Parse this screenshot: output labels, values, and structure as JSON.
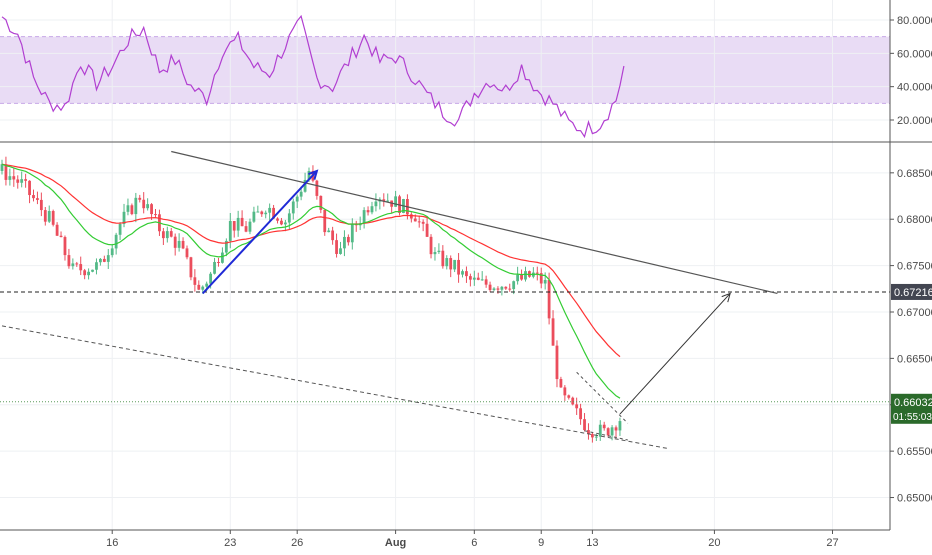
{
  "chart_data": {
    "type": "candlestick",
    "colors": {
      "bull": "#53b987",
      "bear": "#eb4d5c",
      "ema_fast": "#33cc33",
      "ema_slow": "#ff3333",
      "rsi_line": "#b13fd1",
      "rsi_band": "#e9dcf5",
      "trendline": "#555555",
      "impulse_arrow": "#1f2ad6",
      "projection_arrow": "#333333",
      "grid": "#eef0f3",
      "price_tag_bg": "#434651",
      "last_price_tag_bg": "#2b6a2b"
    },
    "x_ticks": [
      {
        "label": "16",
        "bar": 28
      },
      {
        "label": "23",
        "bar": 58
      },
      {
        "label": "26",
        "bar": 75
      },
      {
        "label": "Aug",
        "bar": 100
      },
      {
        "label": "6",
        "bar": 120
      },
      {
        "label": "9",
        "bar": 137
      },
      {
        "label": "13",
        "bar": 150
      },
      {
        "label": "20",
        "bar": 181
      },
      {
        "label": "27",
        "bar": 211
      }
    ],
    "price_axis": {
      "min": 0.6465,
      "max": 0.688,
      "tick_labels": [
        "0.68500",
        "0.68000",
        "0.67500",
        "0.67000",
        "0.66500",
        "0.66000",
        "0.65500",
        "0.65000"
      ],
      "tick_values": [
        0.685,
        0.68,
        0.675,
        0.67,
        0.665,
        0.66,
        0.655,
        0.65
      ]
    },
    "rsi_axis": {
      "min": 8,
      "max": 92,
      "tick_labels": [
        "80.0000",
        "60.0000",
        "40.0000",
        "20.0000"
      ],
      "tick_values": [
        80,
        60,
        40,
        20
      ],
      "band_upper": 70,
      "band_lower": 30
    },
    "level_line": {
      "value": 0.67216,
      "label": "0.67216"
    },
    "last_price": {
      "value": 0.66032,
      "label": "0.66032",
      "countdown": "01:55:03"
    },
    "price_path": [
      [
        0,
        0.6852
      ],
      [
        5,
        0.6838
      ],
      [
        12,
        0.68
      ],
      [
        18,
        0.6745
      ],
      [
        25,
        0.675
      ],
      [
        30,
        0.6795
      ],
      [
        35,
        0.6825
      ],
      [
        40,
        0.679
      ],
      [
        45,
        0.6772
      ],
      [
        50,
        0.6722
      ],
      [
        53,
        0.674
      ],
      [
        58,
        0.6795
      ],
      [
        62,
        0.679
      ],
      [
        67,
        0.6815
      ],
      [
        72,
        0.6798
      ],
      [
        78,
        0.6852
      ],
      [
        82,
        0.679
      ],
      [
        86,
        0.6765
      ],
      [
        90,
        0.6795
      ],
      [
        95,
        0.6828
      ],
      [
        100,
        0.6818
      ],
      [
        105,
        0.6805
      ],
      [
        110,
        0.676
      ],
      [
        115,
        0.6748
      ],
      [
        118,
        0.6735
      ],
      [
        122,
        0.673
      ],
      [
        127,
        0.673
      ],
      [
        132,
        0.6735
      ],
      [
        135,
        0.674
      ],
      [
        138,
        0.673
      ],
      [
        140,
        0.666
      ],
      [
        142,
        0.661
      ],
      [
        145,
        0.6595
      ],
      [
        149,
        0.6575
      ],
      [
        153,
        0.657
      ],
      [
        157,
        0.6585
      ]
    ],
    "rsi_path": [
      [
        0,
        82
      ],
      [
        4,
        72
      ],
      [
        8,
        45
      ],
      [
        12,
        30
      ],
      [
        16,
        28
      ],
      [
        20,
        55
      ],
      [
        24,
        42
      ],
      [
        28,
        52
      ],
      [
        32,
        68
      ],
      [
        36,
        75
      ],
      [
        40,
        50
      ],
      [
        44,
        56
      ],
      [
        48,
        40
      ],
      [
        52,
        33
      ],
      [
        56,
        62
      ],
      [
        60,
        68
      ],
      [
        64,
        52
      ],
      [
        68,
        48
      ],
      [
        72,
        65
      ],
      [
        76,
        78
      ],
      [
        80,
        45
      ],
      [
        84,
        40
      ],
      [
        88,
        55
      ],
      [
        92,
        70
      ],
      [
        96,
        55
      ],
      [
        100,
        58
      ],
      [
        104,
        48
      ],
      [
        108,
        35
      ],
      [
        112,
        25
      ],
      [
        116,
        20
      ],
      [
        120,
        36
      ],
      [
        124,
        44
      ],
      [
        128,
        38
      ],
      [
        132,
        52
      ],
      [
        136,
        38
      ],
      [
        140,
        30
      ],
      [
        144,
        18
      ],
      [
        148,
        14
      ],
      [
        152,
        18
      ],
      [
        156,
        32
      ],
      [
        158,
        52
      ]
    ],
    "drawings": {
      "upper_trendline": [
        [
          43,
          0.6873
        ],
        [
          197,
          0.672
        ]
      ],
      "lower_channel": [
        [
          0,
          0.6685
        ],
        [
          169,
          0.6553
        ]
      ],
      "impulse_arrow": [
        [
          51,
          0.672
        ],
        [
          80,
          0.6852
        ]
      ],
      "projection_arrow": [
        [
          157,
          0.659
        ],
        [
          185,
          0.672
        ]
      ],
      "wedge_upper": [
        [
          146,
          0.6635
        ],
        [
          159,
          0.658
        ]
      ],
      "wedge_lower": [
        [
          148,
          0.6572
        ],
        [
          159,
          0.6562
        ]
      ]
    }
  }
}
